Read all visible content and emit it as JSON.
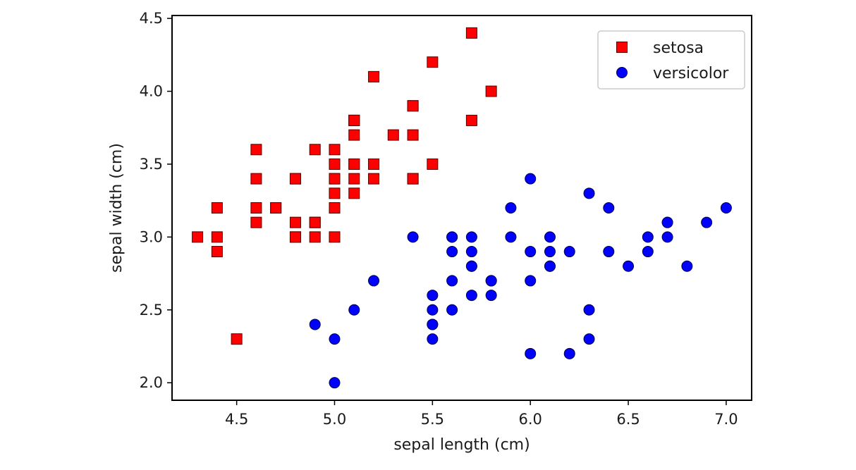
{
  "chart_data": {
    "type": "scatter",
    "xlabel": "sepal length (cm)",
    "ylabel": "sepal width (cm)",
    "xlim": [
      4.17,
      7.13
    ],
    "ylim": [
      1.88,
      4.52
    ],
    "xticks": [
      4.5,
      5.0,
      5.5,
      6.0,
      6.5,
      7.0
    ],
    "xtick_labels": [
      "4.5",
      "5.0",
      "5.5",
      "6.0",
      "6.5",
      "7.0"
    ],
    "yticks": [
      2.0,
      2.5,
      3.0,
      3.5,
      4.0,
      4.5
    ],
    "ytick_labels": [
      "2.0",
      "2.5",
      "3.0",
      "3.5",
      "4.0",
      "4.5"
    ],
    "grid": false,
    "legend_position": "upper-right",
    "series": [
      {
        "name": "setosa",
        "marker": "square",
        "color": "#ff0000",
        "points": [
          [
            5.1,
            3.5
          ],
          [
            4.9,
            3.0
          ],
          [
            4.7,
            3.2
          ],
          [
            4.6,
            3.1
          ],
          [
            5.0,
            3.6
          ],
          [
            5.4,
            3.9
          ],
          [
            4.6,
            3.4
          ],
          [
            5.0,
            3.4
          ],
          [
            4.4,
            2.9
          ],
          [
            4.9,
            3.1
          ],
          [
            5.4,
            3.7
          ],
          [
            4.8,
            3.4
          ],
          [
            4.8,
            3.0
          ],
          [
            4.3,
            3.0
          ],
          [
            5.8,
            4.0
          ],
          [
            5.7,
            4.4
          ],
          [
            5.4,
            3.9
          ],
          [
            5.1,
            3.5
          ],
          [
            5.7,
            3.8
          ],
          [
            5.1,
            3.8
          ],
          [
            5.4,
            3.4
          ],
          [
            5.1,
            3.7
          ],
          [
            4.6,
            3.6
          ],
          [
            5.1,
            3.3
          ],
          [
            4.8,
            3.4
          ],
          [
            5.0,
            3.0
          ],
          [
            5.0,
            3.4
          ],
          [
            5.2,
            3.5
          ],
          [
            5.2,
            3.4
          ],
          [
            4.7,
            3.2
          ],
          [
            4.8,
            3.1
          ],
          [
            5.4,
            3.4
          ],
          [
            5.2,
            4.1
          ],
          [
            5.5,
            4.2
          ],
          [
            4.9,
            3.1
          ],
          [
            5.0,
            3.2
          ],
          [
            5.5,
            3.5
          ],
          [
            4.9,
            3.6
          ],
          [
            4.4,
            3.0
          ],
          [
            5.1,
            3.4
          ],
          [
            5.0,
            3.5
          ],
          [
            4.5,
            2.3
          ],
          [
            4.4,
            3.2
          ],
          [
            5.0,
            3.5
          ],
          [
            5.1,
            3.8
          ],
          [
            4.8,
            3.0
          ],
          [
            5.1,
            3.8
          ],
          [
            4.6,
            3.2
          ],
          [
            5.3,
            3.7
          ],
          [
            5.0,
            3.3
          ]
        ]
      },
      {
        "name": "versicolor",
        "marker": "circle",
        "color": "#0000ff",
        "points": [
          [
            7.0,
            3.2
          ],
          [
            6.4,
            3.2
          ],
          [
            6.9,
            3.1
          ],
          [
            5.5,
            2.3
          ],
          [
            6.5,
            2.8
          ],
          [
            5.7,
            2.8
          ],
          [
            6.3,
            3.3
          ],
          [
            4.9,
            2.4
          ],
          [
            6.6,
            2.9
          ],
          [
            5.2,
            2.7
          ],
          [
            5.0,
            2.0
          ],
          [
            5.9,
            3.0
          ],
          [
            6.0,
            2.2
          ],
          [
            6.1,
            2.9
          ],
          [
            5.6,
            2.9
          ],
          [
            6.7,
            3.1
          ],
          [
            5.6,
            3.0
          ],
          [
            5.8,
            2.7
          ],
          [
            6.2,
            2.2
          ],
          [
            5.6,
            2.5
          ],
          [
            5.9,
            3.2
          ],
          [
            6.1,
            2.8
          ],
          [
            6.3,
            2.5
          ],
          [
            6.1,
            2.8
          ],
          [
            6.4,
            2.9
          ],
          [
            6.6,
            3.0
          ],
          [
            6.8,
            2.8
          ],
          [
            6.7,
            3.0
          ],
          [
            6.0,
            2.9
          ],
          [
            5.7,
            2.6
          ],
          [
            5.5,
            2.4
          ],
          [
            5.5,
            2.4
          ],
          [
            5.8,
            2.7
          ],
          [
            6.0,
            2.7
          ],
          [
            5.4,
            3.0
          ],
          [
            6.0,
            3.4
          ],
          [
            6.7,
            3.1
          ],
          [
            6.3,
            2.3
          ],
          [
            5.6,
            3.0
          ],
          [
            5.5,
            2.5
          ],
          [
            5.5,
            2.6
          ],
          [
            6.1,
            3.0
          ],
          [
            5.8,
            2.6
          ],
          [
            5.0,
            2.3
          ],
          [
            5.6,
            2.7
          ],
          [
            5.7,
            3.0
          ],
          [
            5.7,
            2.9
          ],
          [
            6.2,
            2.9
          ],
          [
            5.1,
            2.5
          ],
          [
            5.7,
            2.8
          ]
        ]
      }
    ]
  }
}
